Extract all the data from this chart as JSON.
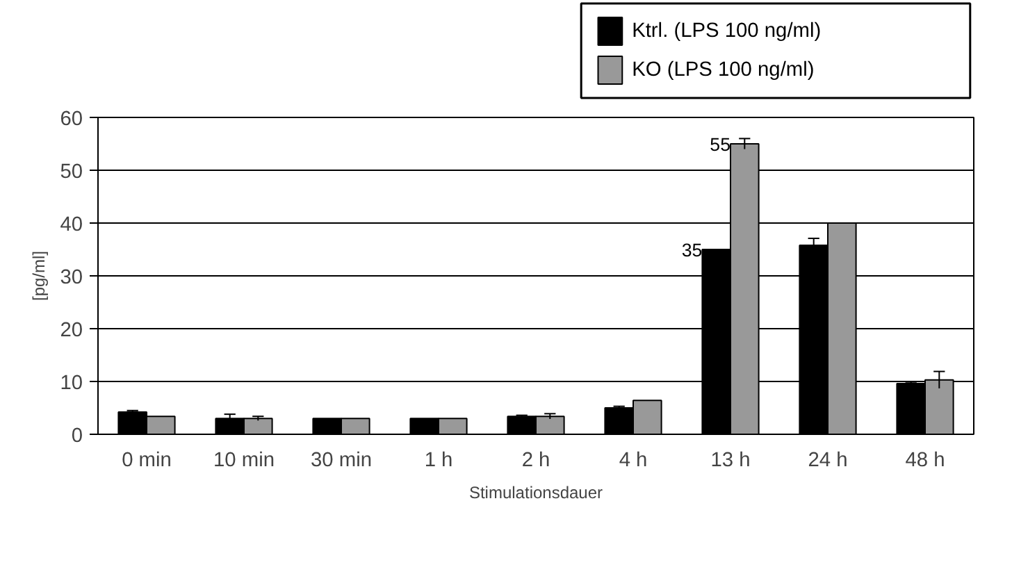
{
  "chart_data": {
    "type": "bar",
    "xlabel": "Stimulationsdauer",
    "ylabel": "[pg/ml]",
    "categories": [
      "0 min",
      "10 min",
      "30 min",
      "1 h",
      "2 h",
      "4 h",
      "13 h",
      "24 h",
      "48 h"
    ],
    "series": [
      {
        "name": "Ktrl. (LPS 100 ng/ml)",
        "color": "#000000",
        "values": [
          4.2,
          3.0,
          3.0,
          3.0,
          3.4,
          5.0,
          35,
          35.8,
          9.6
        ],
        "errors": [
          0.3,
          0.8,
          null,
          null,
          0.2,
          0.3,
          null,
          1.3,
          0.3
        ],
        "value_labels": [
          null,
          null,
          null,
          null,
          null,
          null,
          "35",
          null,
          null
        ]
      },
      {
        "name": "KO  (LPS 100 ng/ml)",
        "color": "#999999",
        "values": [
          3.4,
          3.0,
          3.0,
          3.0,
          3.4,
          6.4,
          55,
          40,
          10.3
        ],
        "errors": [
          null,
          0.4,
          null,
          null,
          0.5,
          null,
          1,
          null,
          1.6
        ],
        "value_labels": [
          null,
          null,
          null,
          null,
          null,
          null,
          "55",
          null,
          null
        ]
      }
    ],
    "ylim": [
      0,
      60
    ],
    "yticks": [
      0,
      10,
      20,
      30,
      40,
      50,
      60
    ],
    "grid": "y",
    "legend": "top right"
  }
}
